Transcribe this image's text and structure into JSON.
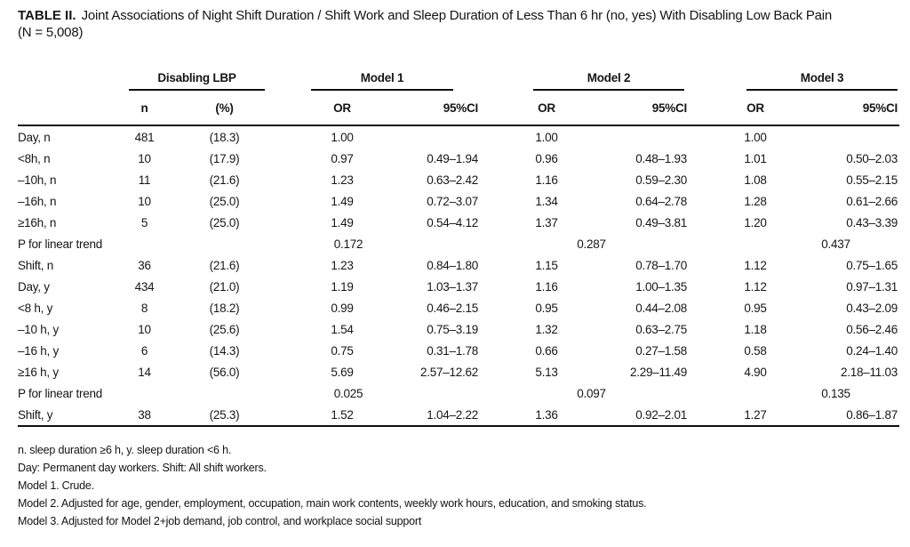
{
  "title": {
    "label": "TABLE II.",
    "text": "Joint Associations of Night Shift Duration / Shift Work and Sleep Duration of Less Than 6 hr (no, yes) With Disabling Low Back Pain",
    "subtitle": "(N = 5,008)"
  },
  "table": {
    "groups": [
      "Disabling LBP",
      "Model 1",
      "Model 2",
      "Model 3"
    ],
    "sub_headers": [
      "n",
      "(%)",
      "OR",
      "95%CI",
      "OR",
      "95%CI",
      "OR",
      "95%CI"
    ],
    "rows": [
      {
        "label": "Day, n",
        "n": "481",
        "pct": "(18.3)",
        "or1": "1.00",
        "ci1": "",
        "or2": "1.00",
        "ci2": "",
        "or3": "1.00",
        "ci3": ""
      },
      {
        "label": "<8h, n",
        "n": "10",
        "pct": "(17.9)",
        "or1": "0.97",
        "ci1": "0.49–1.94",
        "or2": "0.96",
        "ci2": "0.48–1.93",
        "or3": "1.01",
        "ci3": "0.50–2.03"
      },
      {
        "label": "–10h, n",
        "n": "11",
        "pct": "(21.6)",
        "or1": "1.23",
        "ci1": "0.63–2.42",
        "or2": "1.16",
        "ci2": "0.59–2.30",
        "or3": "1.08",
        "ci3": "0.55–2.15"
      },
      {
        "label": "–16h, n",
        "n": "10",
        "pct": "(25.0)",
        "or1": "1.49",
        "ci1": "0.72–3.07",
        "or2": "1.34",
        "ci2": "0.64–2.78",
        "or3": "1.28",
        "ci3": "0.61–2.66"
      },
      {
        "label": "≥16h, n",
        "n": "5",
        "pct": "(25.0)",
        "or1": "1.49",
        "ci1": "0.54–4.12",
        "or2": "1.37",
        "ci2": "0.49–3.81",
        "or3": "1.20",
        "ci3": "0.43–3.39"
      },
      {
        "label": "P for linear trend",
        "p": [
          "0.172",
          "0.287",
          "0.437"
        ]
      },
      {
        "label": "Shift, n",
        "n": "36",
        "pct": "(21.6)",
        "or1": "1.23",
        "ci1": "0.84–1.80",
        "or2": "1.15",
        "ci2": "0.78–1.70",
        "or3": "1.12",
        "ci3": "0.75–1.65"
      },
      {
        "label": "Day, y",
        "n": "434",
        "pct": "(21.0)",
        "or1": "1.19",
        "ci1": "1.03–1.37",
        "or2": "1.16",
        "ci2": "1.00–1.35",
        "or3": "1.12",
        "ci3": "0.97–1.31"
      },
      {
        "label": "<8 h, y",
        "n": "8",
        "pct": "(18.2)",
        "or1": "0.99",
        "ci1": "0.46–2.15",
        "or2": "0.95",
        "ci2": "0.44–2.08",
        "or3": "0.95",
        "ci3": "0.43–2.09"
      },
      {
        "label": "–10 h, y",
        "n": "10",
        "pct": "(25.6)",
        "or1": "1.54",
        "ci1": "0.75–3.19",
        "or2": "1.32",
        "ci2": "0.63–2.75",
        "or3": "1.18",
        "ci3": "0.56–2.46"
      },
      {
        "label": "–16 h, y",
        "n": "6",
        "pct": "(14.3)",
        "or1": "0.75",
        "ci1": "0.31–1.78",
        "or2": "0.66",
        "ci2": "0.27–1.58",
        "or3": "0.58",
        "ci3": "0.24–1.40"
      },
      {
        "label": "≥16 h, y",
        "n": "14",
        "pct": "(56.0)",
        "or1": "5.69",
        "ci1": "2.57–12.62",
        "or2": "5.13",
        "ci2": "2.29–11.49",
        "or3": "4.90",
        "ci3": "2.18–11.03"
      },
      {
        "label": "P for linear trend",
        "p": [
          "0.025",
          "0.097",
          "0.135"
        ]
      },
      {
        "label": "Shift, y",
        "n": "38",
        "pct": "(25.3)",
        "or1": "1.52",
        "ci1": "1.04–2.22",
        "or2": "1.36",
        "ci2": "0.92–2.01",
        "or3": "1.27",
        "ci3": "0.86–1.87"
      }
    ]
  },
  "footnotes": [
    "n. sleep duration ≥6 h, y. sleep duration <6 h.",
    "Day: Permanent day workers. Shift: All shift workers.",
    "Model 1. Crude.",
    "Model 2. Adjusted for age, gender, employment, occupation, main work contents, weekly work hours, education, and smoking status.",
    "Model 3. Adjusted for Model 2+job demand, job control, and workplace social support"
  ]
}
